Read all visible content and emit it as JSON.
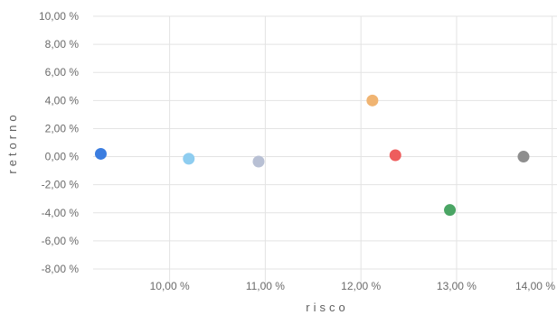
{
  "chart_data": {
    "type": "scatter",
    "xlabel": "risco",
    "ylabel": "retorno",
    "xlim": [
      9.2,
      14.05
    ],
    "ylim": [
      -8.0,
      10.0
    ],
    "x_ticks": [
      10.0,
      11.0,
      12.0,
      13.0,
      14.0
    ],
    "x_tick_labels": [
      "10,00 %",
      "11,00 %",
      "12,00 %",
      "13,00 %",
      "14,00 %"
    ],
    "y_ticks": [
      10.0,
      8.0,
      6.0,
      4.0,
      2.0,
      0.0,
      -2.0,
      -4.0,
      -6.0,
      -8.0
    ],
    "y_tick_labels": [
      "10,00 %",
      "8,00 %",
      "6,00 %",
      "4,00 %",
      "2,00 %",
      "0,00 %",
      "-2,00 %",
      "-4,00 %",
      "-6,00 %",
      "-8,00 %"
    ],
    "grid": true,
    "points": [
      {
        "x": 9.28,
        "y": 0.2,
        "color": "#3b7de0"
      },
      {
        "x": 10.2,
        "y": -0.15,
        "color": "#8ecdf0"
      },
      {
        "x": 10.93,
        "y": -0.35,
        "color": "#b8c0d4"
      },
      {
        "x": 12.12,
        "y": 4.0,
        "color": "#f0b472"
      },
      {
        "x": 12.36,
        "y": 0.1,
        "color": "#ee5d5d"
      },
      {
        "x": 12.93,
        "y": -3.8,
        "color": "#4aa564"
      },
      {
        "x": 13.7,
        "y": 0.0,
        "color": "#8e8e8e"
      }
    ]
  }
}
